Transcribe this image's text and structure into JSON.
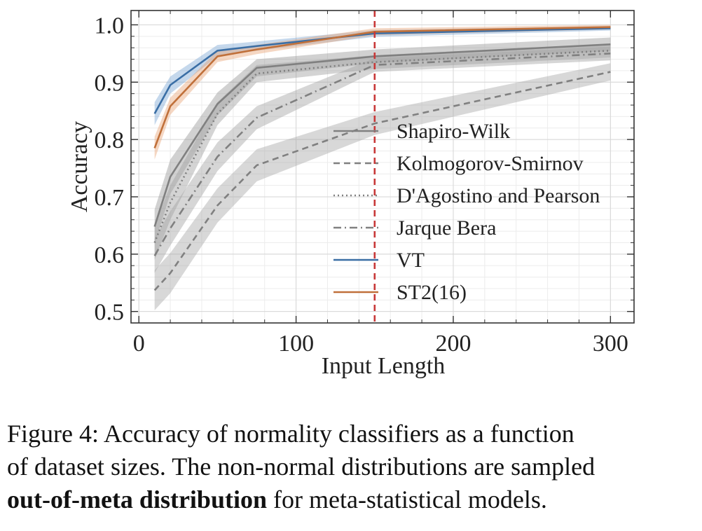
{
  "chart_data": {
    "type": "line",
    "xlabel": "Input Length",
    "ylabel": "Accuracy",
    "xlim": [
      -5,
      315
    ],
    "ylim": [
      0.48,
      1.025
    ],
    "xticks": [
      0,
      100,
      200,
      300
    ],
    "xtick_labels": [
      "0",
      "100",
      "200",
      "300"
    ],
    "yticks": [
      0.5,
      0.6,
      0.7,
      0.8,
      0.9,
      1.0
    ],
    "ytick_labels": [
      "0.5",
      "0.6",
      "0.7",
      "0.8",
      "0.9",
      "1.0"
    ],
    "grid": true,
    "legend_position": "center-right",
    "reference_line": {
      "x": 150,
      "color": "#c83737",
      "style": "dashed"
    },
    "series": [
      {
        "name": "Shapiro-Wilk",
        "color": "#808080",
        "band_color": "#9a9a9a",
        "dash": "solid",
        "x": [
          10,
          20,
          50,
          75,
          150,
          300
        ],
        "y": [
          0.648,
          0.735,
          0.862,
          0.925,
          0.945,
          0.966
        ],
        "band": [
          0.03,
          0.03,
          0.02,
          0.015,
          0.012,
          0.012
        ]
      },
      {
        "name": "Kolmogorov-Smirnov",
        "color": "#808080",
        "band_color": "#a8a8a8",
        "dash": "dashed",
        "x": [
          10,
          20,
          50,
          75,
          150,
          300
        ],
        "y": [
          0.537,
          0.567,
          0.685,
          0.755,
          0.828,
          0.918
        ],
        "band": [
          0.035,
          0.035,
          0.03,
          0.028,
          0.02,
          0.015
        ]
      },
      {
        "name": "D'Agostino and Pearson",
        "color": "#808080",
        "band_color": "#a0a0a0",
        "dash": "dotted",
        "x": [
          10,
          20,
          50,
          75,
          150,
          300
        ],
        "y": [
          0.62,
          0.69,
          0.845,
          0.915,
          0.935,
          0.955
        ],
        "band": [
          0.03,
          0.03,
          0.02,
          0.015,
          0.012,
          0.012
        ]
      },
      {
        "name": "Jarque Bera",
        "color": "#808080",
        "band_color": "#a4a4a4",
        "dash": "dashdot",
        "x": [
          10,
          20,
          50,
          75,
          150,
          300
        ],
        "y": [
          0.597,
          0.645,
          0.77,
          0.838,
          0.93,
          0.95
        ],
        "band": [
          0.03,
          0.03,
          0.025,
          0.02,
          0.012,
          0.012
        ]
      },
      {
        "name": "VT",
        "color": "#3a6ea5",
        "band_color": "#7fa8d4",
        "dash": "solid",
        "x": [
          10,
          20,
          50,
          75,
          150,
          300
        ],
        "y": [
          0.845,
          0.895,
          0.955,
          0.963,
          0.985,
          0.994
        ],
        "band": [
          0.02,
          0.015,
          0.01,
          0.008,
          0.006,
          0.004
        ]
      },
      {
        "name": "ST2(16)",
        "color": "#c0703a",
        "band_color": "#e8a77a",
        "dash": "solid",
        "x": [
          10,
          20,
          50,
          75,
          150,
          300
        ],
        "y": [
          0.785,
          0.858,
          0.945,
          0.957,
          0.988,
          0.996
        ],
        "band": [
          0.02,
          0.015,
          0.01,
          0.008,
          0.006,
          0.004
        ]
      }
    ]
  },
  "caption": {
    "line1": "Figure 4:  Accuracy of normality classifiers as a function",
    "line2": "of dataset sizes. The non-normal distributions are sampled",
    "line3_bold": "out-of-meta distribution",
    "line3_rest": " for meta-statistical models."
  }
}
